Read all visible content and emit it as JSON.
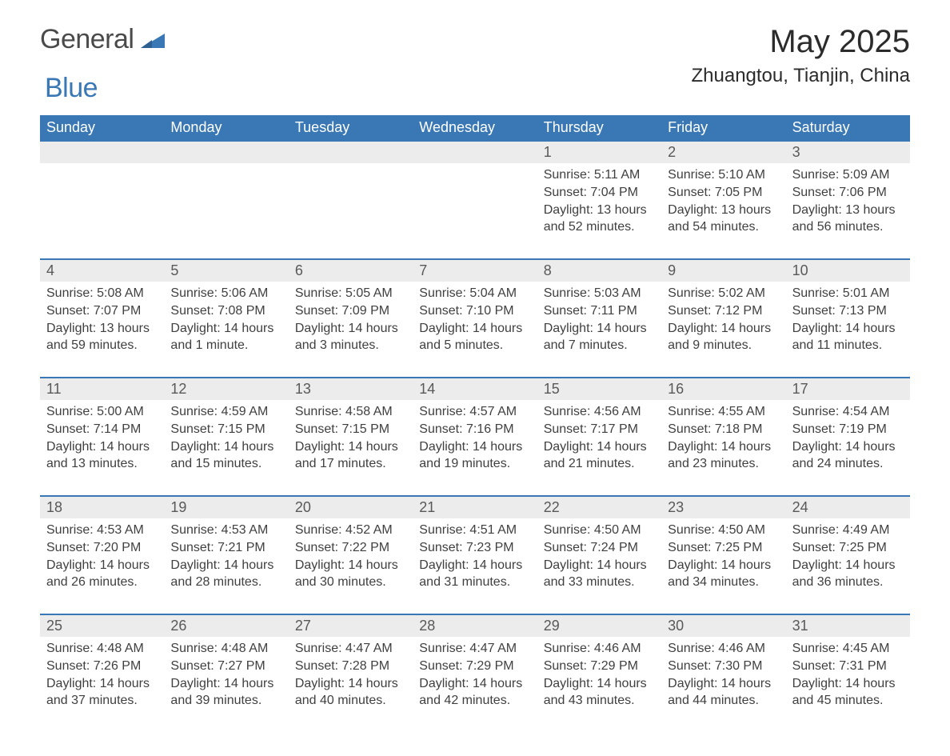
{
  "brand": {
    "general": "General",
    "blue": "Blue",
    "accent_color": "#3a78b5",
    "text_color": "#4a4a4a"
  },
  "title": "May 2025",
  "location": "Zhuangtou, Tianjin, China",
  "colors": {
    "header_bg": "#3a78b5",
    "header_text": "#ffffff",
    "daynum_bg": "#ececec",
    "daynum_text": "#595959",
    "body_text": "#404040",
    "row_border": "#3a78b5",
    "page_bg": "#ffffff"
  },
  "weekdays": [
    "Sunday",
    "Monday",
    "Tuesday",
    "Wednesday",
    "Thursday",
    "Friday",
    "Saturday"
  ],
  "weeks": [
    [
      {
        "day": "",
        "sunrise": "",
        "sunset": "",
        "daylight": ""
      },
      {
        "day": "",
        "sunrise": "",
        "sunset": "",
        "daylight": ""
      },
      {
        "day": "",
        "sunrise": "",
        "sunset": "",
        "daylight": ""
      },
      {
        "day": "",
        "sunrise": "",
        "sunset": "",
        "daylight": ""
      },
      {
        "day": "1",
        "sunrise": "Sunrise: 5:11 AM",
        "sunset": "Sunset: 7:04 PM",
        "daylight": "Daylight: 13 hours and 52 minutes."
      },
      {
        "day": "2",
        "sunrise": "Sunrise: 5:10 AM",
        "sunset": "Sunset: 7:05 PM",
        "daylight": "Daylight: 13 hours and 54 minutes."
      },
      {
        "day": "3",
        "sunrise": "Sunrise: 5:09 AM",
        "sunset": "Sunset: 7:06 PM",
        "daylight": "Daylight: 13 hours and 56 minutes."
      }
    ],
    [
      {
        "day": "4",
        "sunrise": "Sunrise: 5:08 AM",
        "sunset": "Sunset: 7:07 PM",
        "daylight": "Daylight: 13 hours and 59 minutes."
      },
      {
        "day": "5",
        "sunrise": "Sunrise: 5:06 AM",
        "sunset": "Sunset: 7:08 PM",
        "daylight": "Daylight: 14 hours and 1 minute."
      },
      {
        "day": "6",
        "sunrise": "Sunrise: 5:05 AM",
        "sunset": "Sunset: 7:09 PM",
        "daylight": "Daylight: 14 hours and 3 minutes."
      },
      {
        "day": "7",
        "sunrise": "Sunrise: 5:04 AM",
        "sunset": "Sunset: 7:10 PM",
        "daylight": "Daylight: 14 hours and 5 minutes."
      },
      {
        "day": "8",
        "sunrise": "Sunrise: 5:03 AM",
        "sunset": "Sunset: 7:11 PM",
        "daylight": "Daylight: 14 hours and 7 minutes."
      },
      {
        "day": "9",
        "sunrise": "Sunrise: 5:02 AM",
        "sunset": "Sunset: 7:12 PM",
        "daylight": "Daylight: 14 hours and 9 minutes."
      },
      {
        "day": "10",
        "sunrise": "Sunrise: 5:01 AM",
        "sunset": "Sunset: 7:13 PM",
        "daylight": "Daylight: 14 hours and 11 minutes."
      }
    ],
    [
      {
        "day": "11",
        "sunrise": "Sunrise: 5:00 AM",
        "sunset": "Sunset: 7:14 PM",
        "daylight": "Daylight: 14 hours and 13 minutes."
      },
      {
        "day": "12",
        "sunrise": "Sunrise: 4:59 AM",
        "sunset": "Sunset: 7:15 PM",
        "daylight": "Daylight: 14 hours and 15 minutes."
      },
      {
        "day": "13",
        "sunrise": "Sunrise: 4:58 AM",
        "sunset": "Sunset: 7:15 PM",
        "daylight": "Daylight: 14 hours and 17 minutes."
      },
      {
        "day": "14",
        "sunrise": "Sunrise: 4:57 AM",
        "sunset": "Sunset: 7:16 PM",
        "daylight": "Daylight: 14 hours and 19 minutes."
      },
      {
        "day": "15",
        "sunrise": "Sunrise: 4:56 AM",
        "sunset": "Sunset: 7:17 PM",
        "daylight": "Daylight: 14 hours and 21 minutes."
      },
      {
        "day": "16",
        "sunrise": "Sunrise: 4:55 AM",
        "sunset": "Sunset: 7:18 PM",
        "daylight": "Daylight: 14 hours and 23 minutes."
      },
      {
        "day": "17",
        "sunrise": "Sunrise: 4:54 AM",
        "sunset": "Sunset: 7:19 PM",
        "daylight": "Daylight: 14 hours and 24 minutes."
      }
    ],
    [
      {
        "day": "18",
        "sunrise": "Sunrise: 4:53 AM",
        "sunset": "Sunset: 7:20 PM",
        "daylight": "Daylight: 14 hours and 26 minutes."
      },
      {
        "day": "19",
        "sunrise": "Sunrise: 4:53 AM",
        "sunset": "Sunset: 7:21 PM",
        "daylight": "Daylight: 14 hours and 28 minutes."
      },
      {
        "day": "20",
        "sunrise": "Sunrise: 4:52 AM",
        "sunset": "Sunset: 7:22 PM",
        "daylight": "Daylight: 14 hours and 30 minutes."
      },
      {
        "day": "21",
        "sunrise": "Sunrise: 4:51 AM",
        "sunset": "Sunset: 7:23 PM",
        "daylight": "Daylight: 14 hours and 31 minutes."
      },
      {
        "day": "22",
        "sunrise": "Sunrise: 4:50 AM",
        "sunset": "Sunset: 7:24 PM",
        "daylight": "Daylight: 14 hours and 33 minutes."
      },
      {
        "day": "23",
        "sunrise": "Sunrise: 4:50 AM",
        "sunset": "Sunset: 7:25 PM",
        "daylight": "Daylight: 14 hours and 34 minutes."
      },
      {
        "day": "24",
        "sunrise": "Sunrise: 4:49 AM",
        "sunset": "Sunset: 7:25 PM",
        "daylight": "Daylight: 14 hours and 36 minutes."
      }
    ],
    [
      {
        "day": "25",
        "sunrise": "Sunrise: 4:48 AM",
        "sunset": "Sunset: 7:26 PM",
        "daylight": "Daylight: 14 hours and 37 minutes."
      },
      {
        "day": "26",
        "sunrise": "Sunrise: 4:48 AM",
        "sunset": "Sunset: 7:27 PM",
        "daylight": "Daylight: 14 hours and 39 minutes."
      },
      {
        "day": "27",
        "sunrise": "Sunrise: 4:47 AM",
        "sunset": "Sunset: 7:28 PM",
        "daylight": "Daylight: 14 hours and 40 minutes."
      },
      {
        "day": "28",
        "sunrise": "Sunrise: 4:47 AM",
        "sunset": "Sunset: 7:29 PM",
        "daylight": "Daylight: 14 hours and 42 minutes."
      },
      {
        "day": "29",
        "sunrise": "Sunrise: 4:46 AM",
        "sunset": "Sunset: 7:29 PM",
        "daylight": "Daylight: 14 hours and 43 minutes."
      },
      {
        "day": "30",
        "sunrise": "Sunrise: 4:46 AM",
        "sunset": "Sunset: 7:30 PM",
        "daylight": "Daylight: 14 hours and 44 minutes."
      },
      {
        "day": "31",
        "sunrise": "Sunrise: 4:45 AM",
        "sunset": "Sunset: 7:31 PM",
        "daylight": "Daylight: 14 hours and 45 minutes."
      }
    ]
  ]
}
